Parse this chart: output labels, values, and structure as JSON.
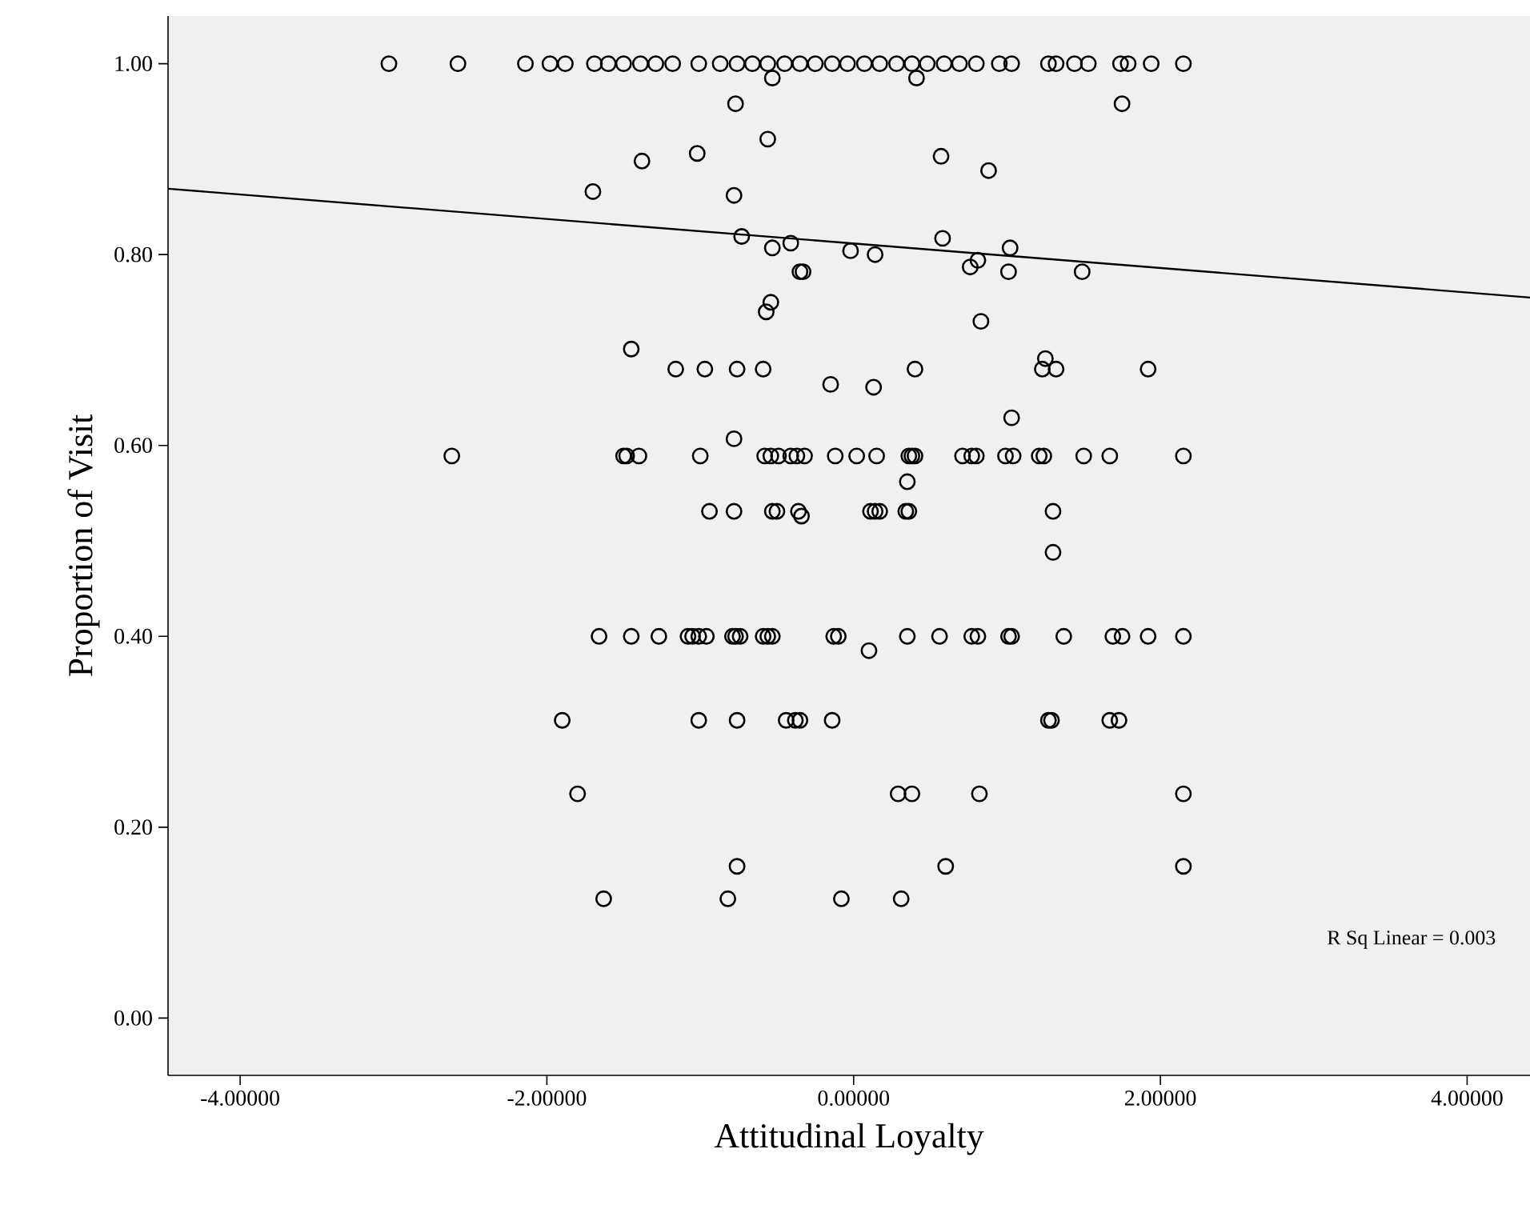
{
  "chart_data": {
    "type": "scatter",
    "xlabel": "Attitudinal Loyalty",
    "ylabel": "Proportion of Visit",
    "annotations": [
      "R Sq Linear = 0.003"
    ],
    "xlim": [
      -4.47,
      4.41
    ],
    "ylim": [
      -0.06,
      1.05
    ],
    "xticks": [
      {
        "value": -4,
        "label": "-4.00000"
      },
      {
        "value": -2,
        "label": "-2.00000"
      },
      {
        "value": 0,
        "label": "0.00000"
      },
      {
        "value": 2,
        "label": "2.00000"
      },
      {
        "value": 4,
        "label": "4.00000"
      }
    ],
    "yticks": [
      {
        "value": 0,
        "label": "0.00"
      },
      {
        "value": 0.2,
        "label": "0.20"
      },
      {
        "value": 0.4,
        "label": "0.40"
      },
      {
        "value": 0.6,
        "label": "0.60"
      },
      {
        "value": 0.8,
        "label": "0.80"
      },
      {
        "value": 1,
        "label": "1.00"
      }
    ],
    "series": [
      {
        "color": "#000000",
        "marker": "circle",
        "x": [
          -3.03,
          -2.58,
          -2.14,
          -1.98,
          -1.88,
          -1.69,
          -1.6,
          -1.5,
          -1.39,
          -1.29,
          -1.18,
          -1.01,
          -0.87,
          -0.76,
          -0.66,
          -0.56,
          -0.45,
          -0.35,
          -0.25,
          -0.14,
          -0.04,
          0.07,
          0.17,
          0.28,
          0.38,
          0.48,
          0.59,
          0.69,
          0.8,
          0.95,
          1.03,
          1.27,
          1.32,
          1.44,
          1.53,
          1.74,
          1.79,
          1.94,
          2.15,
          -0.53,
          0.41,
          -0.77,
          1.75,
          -0.56,
          -1.02,
          -1.38,
          0.57,
          0.88,
          -1.7,
          -0.78,
          -0.73,
          -0.41,
          -0.53,
          -0.02,
          0.14,
          0.58,
          1.02,
          0.76,
          0.81,
          1.01,
          1.49,
          -0.35,
          -0.33,
          -0.54,
          -0.57,
          0.83,
          -1.45,
          -1.16,
          -0.97,
          -0.76,
          -0.59,
          -0.15,
          0.13,
          0.4,
          1.23,
          1.25,
          1.32,
          1.92,
          -0.78,
          1.03,
          -2.62,
          -1.5,
          -1.48,
          -1.4,
          -1.0,
          -0.58,
          -0.54,
          -0.49,
          -0.41,
          -0.37,
          -0.32,
          -0.12,
          0.02,
          0.15,
          0.36,
          0.38,
          0.4,
          0.71,
          0.77,
          0.8,
          0.99,
          1.04,
          1.21,
          1.24,
          1.5,
          1.67,
          2.15,
          0.35,
          -0.94,
          -0.78,
          -0.53,
          -0.5,
          -0.36,
          -0.34,
          0.11,
          0.14,
          0.17,
          0.34,
          0.36,
          1.3,
          1.3,
          -1.66,
          -1.45,
          -1.27,
          -1.08,
          -1.05,
          -1.01,
          -0.96,
          -0.79,
          -0.77,
          -0.74,
          -0.59,
          -0.56,
          -0.53,
          -0.13,
          -0.1,
          0.1,
          0.35,
          0.56,
          0.77,
          0.81,
          1.01,
          1.03,
          1.37,
          1.69,
          1.75,
          1.92,
          2.15,
          -1.9,
          -1.01,
          -0.76,
          -0.44,
          -0.38,
          -0.35,
          -0.14,
          1.27,
          1.29,
          1.67,
          1.73,
          -1.8,
          0.29,
          0.38,
          0.82,
          2.15,
          -0.76,
          0.6,
          2.15,
          -1.63,
          -0.82,
          -0.08,
          0.31
        ],
        "values": [
          1,
          1,
          1,
          1,
          1,
          1,
          1,
          1,
          1,
          1,
          1,
          1,
          1,
          1,
          1,
          1,
          1,
          1,
          1,
          1,
          1,
          1,
          1,
          1,
          1,
          1,
          1,
          1,
          1,
          1,
          1,
          1,
          1,
          1,
          1,
          1,
          1,
          1,
          1,
          0.985,
          0.985,
          0.958,
          0.958,
          0.921,
          0.906,
          0.898,
          0.903,
          0.888,
          0.866,
          0.862,
          0.819,
          0.812,
          0.807,
          0.804,
          0.8,
          0.817,
          0.807,
          0.787,
          0.794,
          0.782,
          0.782,
          0.782,
          0.782,
          0.75,
          0.74,
          0.73,
          0.701,
          0.68,
          0.68,
          0.68,
          0.68,
          0.664,
          0.661,
          0.68,
          0.68,
          0.691,
          0.68,
          0.68,
          0.607,
          0.629,
          0.589,
          0.589,
          0.589,
          0.589,
          0.589,
          0.589,
          0.589,
          0.589,
          0.589,
          0.589,
          0.589,
          0.589,
          0.589,
          0.589,
          0.589,
          0.589,
          0.589,
          0.589,
          0.589,
          0.589,
          0.589,
          0.589,
          0.589,
          0.589,
          0.589,
          0.589,
          0.589,
          0.562,
          0.531,
          0.531,
          0.531,
          0.531,
          0.531,
          0.526,
          0.531,
          0.531,
          0.531,
          0.531,
          0.531,
          0.531,
          0.488,
          0.4,
          0.4,
          0.4,
          0.4,
          0.4,
          0.4,
          0.4,
          0.4,
          0.4,
          0.4,
          0.4,
          0.4,
          0.4,
          0.4,
          0.4,
          0.385,
          0.4,
          0.4,
          0.4,
          0.4,
          0.4,
          0.4,
          0.4,
          0.4,
          0.4,
          0.4,
          0.4,
          0.312,
          0.312,
          0.312,
          0.312,
          0.312,
          0.312,
          0.312,
          0.312,
          0.312,
          0.312,
          0.312,
          0.235,
          0.235,
          0.235,
          0.235,
          0.235,
          0.159,
          0.159,
          0.159,
          0.125,
          0.125,
          0.125,
          0.125
        ]
      },
      {
        "type": "line",
        "color": "#000000",
        "marker": "none",
        "x": [
          -4.47,
          4.41
        ],
        "values": [
          0.869,
          0.755
        ]
      }
    ]
  }
}
